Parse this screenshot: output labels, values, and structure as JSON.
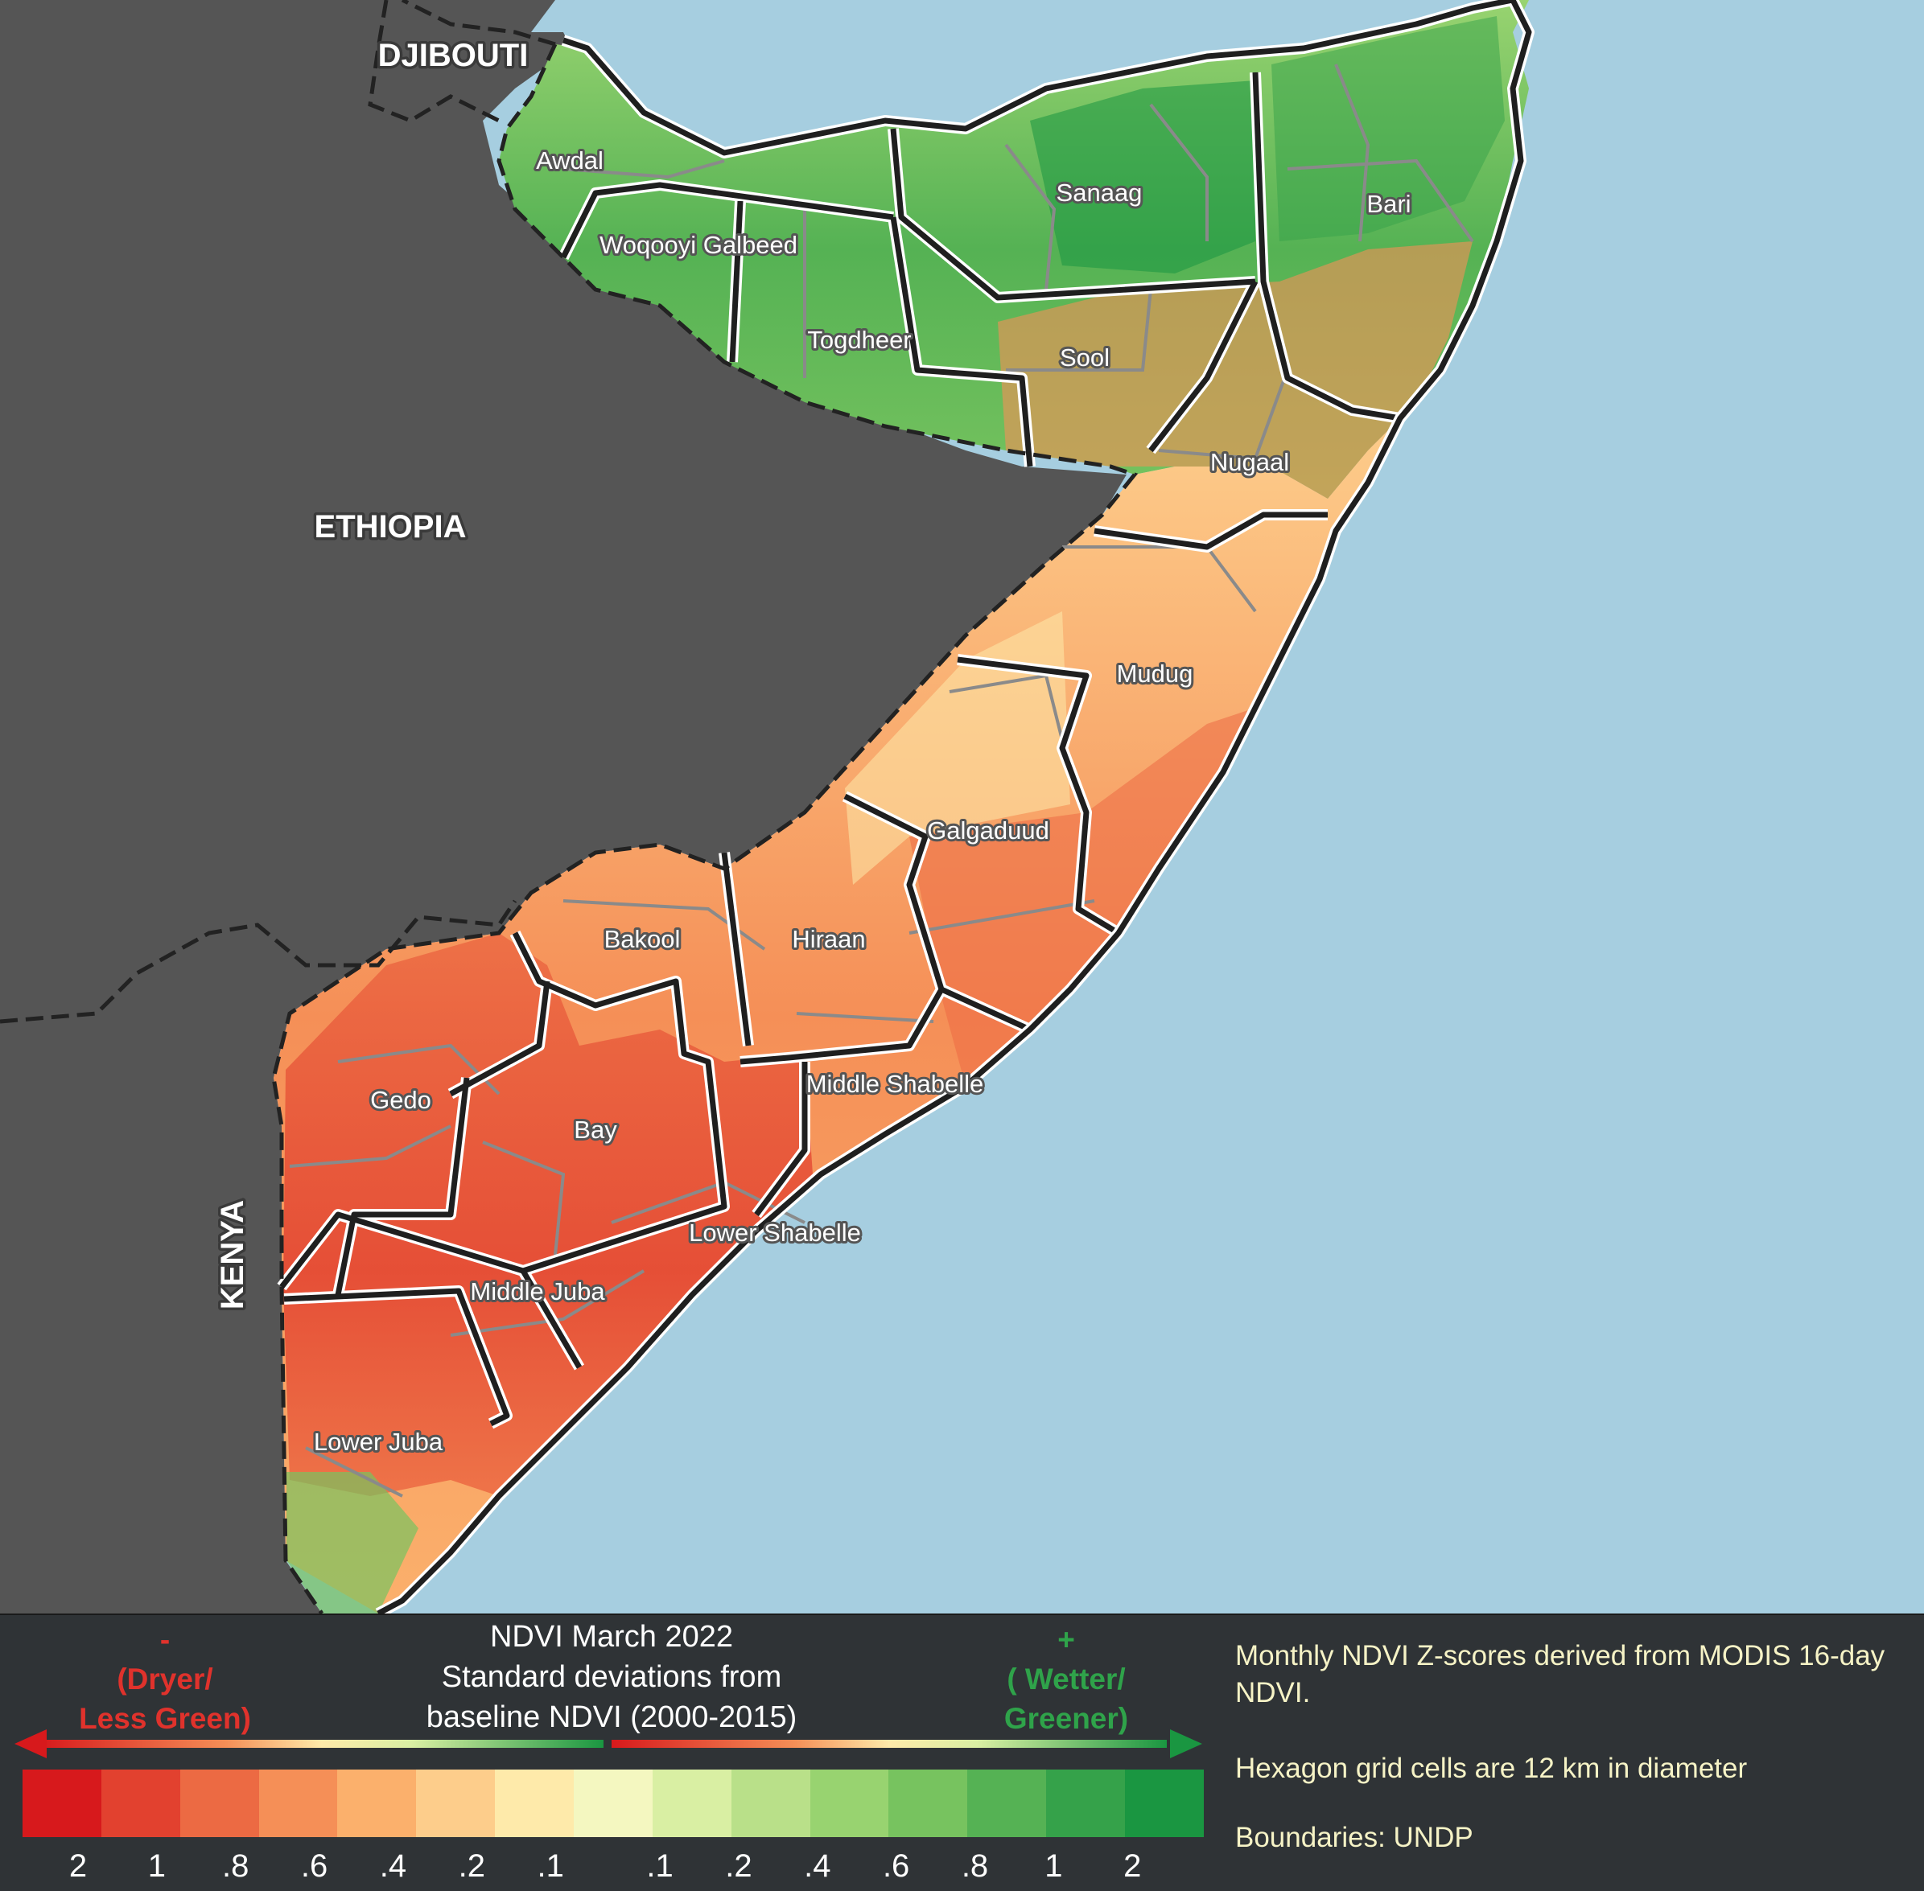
{
  "map": {
    "countries": [
      {
        "id": "djibouti",
        "label": "DJIBOUTI"
      },
      {
        "id": "ethiopia",
        "label": "ETHIOPIA"
      },
      {
        "id": "kenya",
        "label": "KENYA"
      }
    ],
    "regions": [
      {
        "id": "awdal",
        "label": "Awdal"
      },
      {
        "id": "woqooyi-galbeed",
        "label": "Woqooyi Galbeed"
      },
      {
        "id": "togdheer",
        "label": "Togdheer"
      },
      {
        "id": "sanaag",
        "label": "Sanaag"
      },
      {
        "id": "bari",
        "label": "Bari"
      },
      {
        "id": "sool",
        "label": "Sool"
      },
      {
        "id": "nugaal",
        "label": "Nugaal"
      },
      {
        "id": "mudug",
        "label": "Mudug"
      },
      {
        "id": "galgaduud",
        "label": "Galgaduud"
      },
      {
        "id": "hiraan",
        "label": "Hiraan"
      },
      {
        "id": "bakool",
        "label": "Bakool"
      },
      {
        "id": "middle-shabelle",
        "label": "Middle Shabelle"
      },
      {
        "id": "gedo",
        "label": "Gedo"
      },
      {
        "id": "bay",
        "label": "Bay"
      },
      {
        "id": "lower-shabelle",
        "label": "Lower Shabelle"
      },
      {
        "id": "middle-juba",
        "label": "Middle Juba"
      },
      {
        "id": "lower-juba",
        "label": "Lower Juba"
      }
    ],
    "colors": {
      "sea": "#a6cee0",
      "neighbor_land": "#555555",
      "admin1_boundary": "#1f1f1f",
      "admin2_boundary": "#8a8a8a",
      "international_boundary": "#222222"
    }
  },
  "legend": {
    "title_lines": [
      "NDVI March 2022",
      "Standard deviations from",
      "baseline NDVI (2000-2015)"
    ],
    "negative": {
      "sign": "-",
      "lines": [
        "(Dryer/",
        "Less Green)"
      ],
      "color": "#e0322c"
    },
    "positive": {
      "sign": "+",
      "lines": [
        "( Wetter/",
        "Greener)"
      ],
      "color": "#2fa34a"
    },
    "swatches": [
      "#d7191c",
      "#e2412f",
      "#ec6a43",
      "#f58f57",
      "#fbb06c",
      "#fdcd8b",
      "#feeaaa",
      "#f4f7c0",
      "#d9efa3",
      "#b9e089",
      "#98d370",
      "#77c35f",
      "#55b254",
      "#35a24a",
      "#1a9641"
    ],
    "ticks": [
      "2",
      "1",
      ".8",
      ".6",
      ".4",
      ".2",
      ".1",
      ".1",
      ".2",
      ".4",
      ".6",
      ".8",
      "1",
      "2"
    ],
    "notes": [
      "Monthly NDVI Z-scores derived from MODIS 16-day NDVI.",
      "Hexagon grid cells are 12 km in diameter",
      "Boundaries: UNDP"
    ]
  }
}
